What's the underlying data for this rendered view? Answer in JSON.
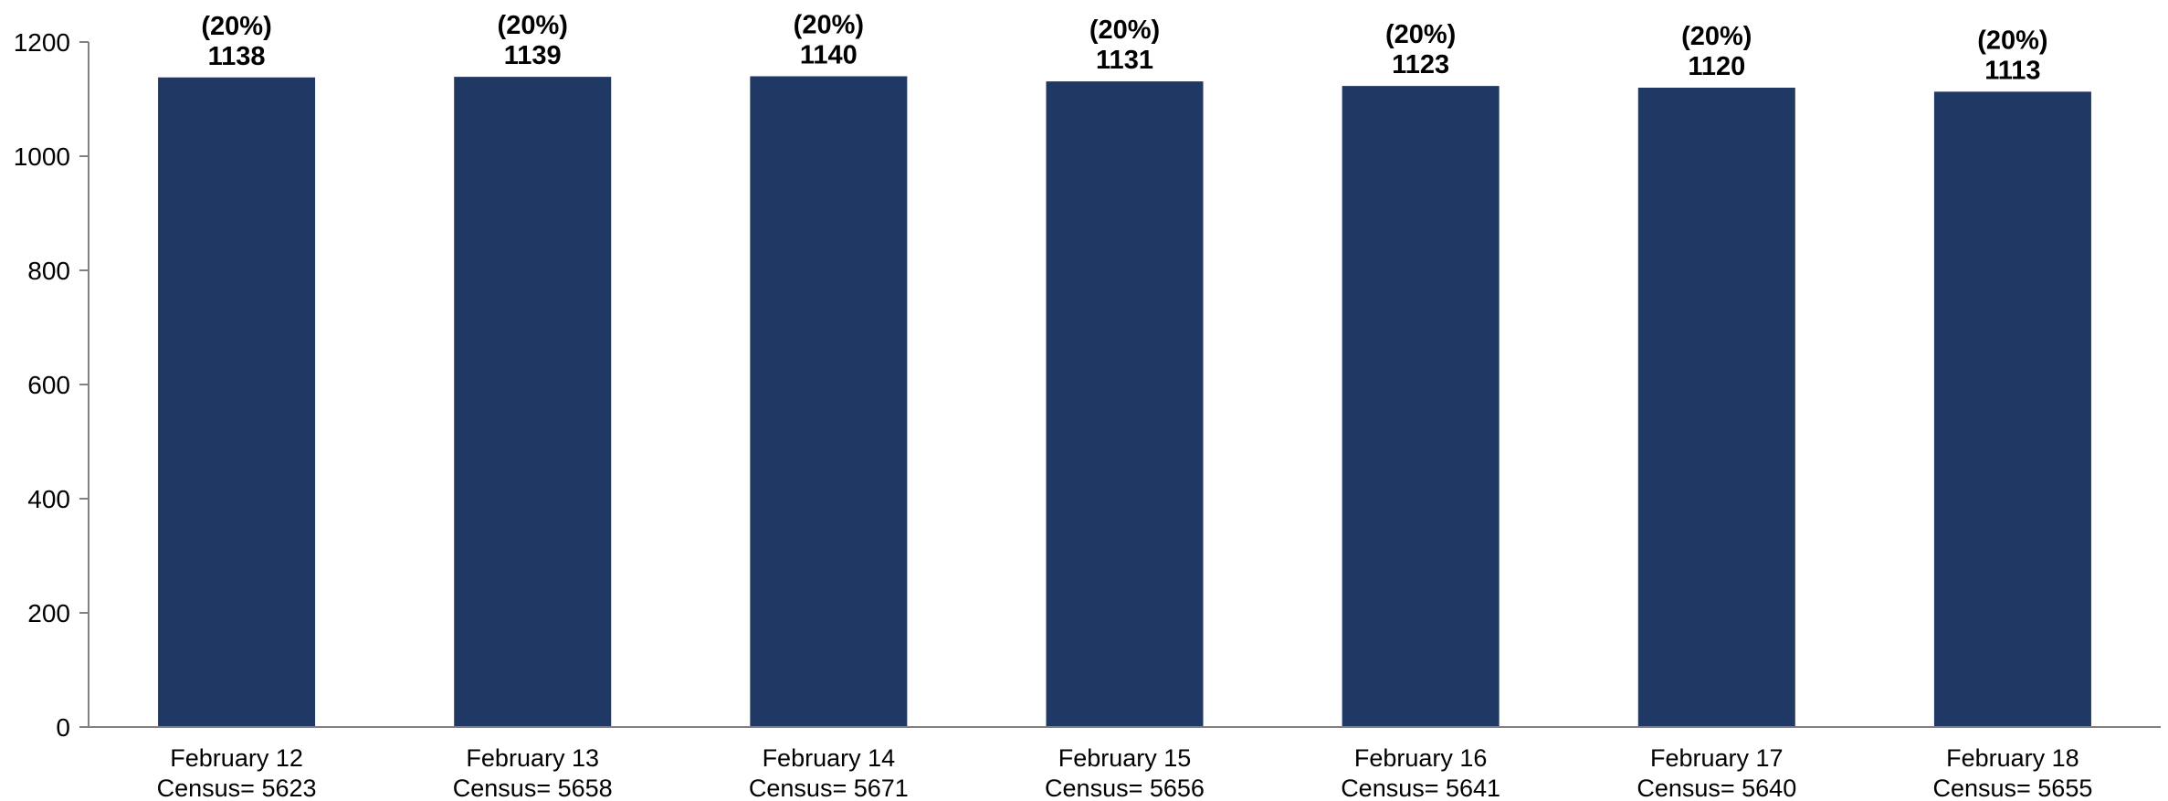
{
  "chart_data": {
    "type": "bar",
    "title": "",
    "xlabel": "",
    "ylabel": "",
    "ylim": [
      0,
      1200
    ],
    "yticks": [
      0,
      200,
      400,
      600,
      800,
      1000,
      1200
    ],
    "grid": false,
    "legend": "none",
    "bar_color": "#1f3864",
    "categories": [
      "February 12",
      "February 13",
      "February 14",
      "February 15",
      "February 16",
      "February 17",
      "February 18"
    ],
    "category_sublabels": [
      "Census= 5623",
      "Census= 5658",
      "Census= 5671",
      "Census= 5656",
      "Census= 5641",
      "Census= 5640",
      "Census= 5655"
    ],
    "values": [
      1138,
      1139,
      1140,
      1131,
      1123,
      1120,
      1113
    ],
    "percent_labels": [
      "(20%)",
      "(20%)",
      "(20%)",
      "(20%)",
      "(20%)",
      "(20%)",
      "(20%)"
    ]
  }
}
